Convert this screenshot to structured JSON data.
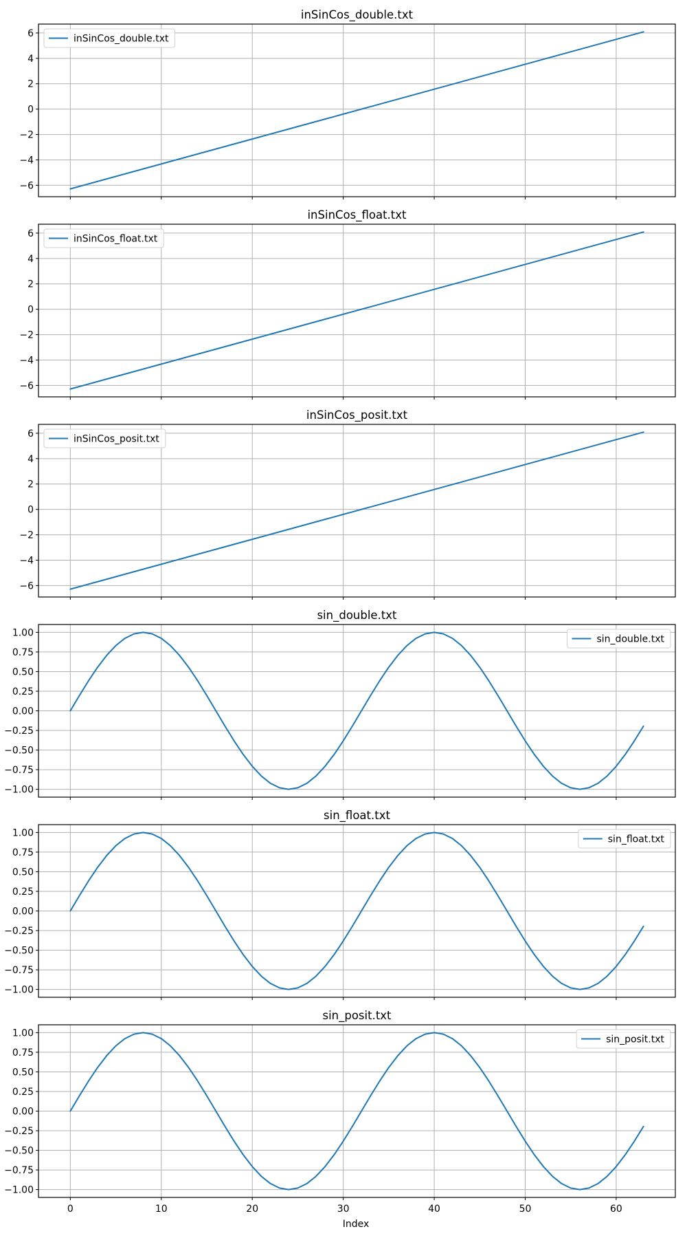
{
  "figure": {
    "xlabel": "Index",
    "line_color": "#1f77b4"
  },
  "chart_data": [
    {
      "type": "line",
      "title": "inSinCos_double.txt",
      "xlabel": "",
      "ylabel": "",
      "xlim": [
        -3.5,
        66.5
      ],
      "ylim": [
        -6.9,
        6.7
      ],
      "yticks": [
        -6,
        -4,
        -2,
        0,
        2,
        4,
        6
      ],
      "ytick_labels": [
        "−6",
        "−4",
        "−2",
        "0",
        "2",
        "4",
        "6"
      ],
      "xticks": [
        0,
        10,
        20,
        30,
        40,
        50,
        60
      ],
      "xtick_labels": [],
      "grid": true,
      "legend_loc": "upper left",
      "series": [
        {
          "name": "inSinCos_double.txt",
          "kind": "linear",
          "n": 64,
          "start": -6.2832,
          "end": 6.0868
        }
      ]
    },
    {
      "type": "line",
      "title": "inSinCos_float.txt",
      "xlabel": "",
      "ylabel": "",
      "xlim": [
        -3.5,
        66.5
      ],
      "ylim": [
        -6.9,
        6.7
      ],
      "yticks": [
        -6,
        -4,
        -2,
        0,
        2,
        4,
        6
      ],
      "ytick_labels": [
        "−6",
        "−4",
        "−2",
        "0",
        "2",
        "4",
        "6"
      ],
      "xticks": [
        0,
        10,
        20,
        30,
        40,
        50,
        60
      ],
      "xtick_labels": [],
      "grid": true,
      "legend_loc": "upper left",
      "series": [
        {
          "name": "inSinCos_float.txt",
          "kind": "linear",
          "n": 64,
          "start": -6.2832,
          "end": 6.0868
        }
      ]
    },
    {
      "type": "line",
      "title": "inSinCos_posit.txt",
      "xlabel": "",
      "ylabel": "",
      "xlim": [
        -3.5,
        66.5
      ],
      "ylim": [
        -6.9,
        6.7
      ],
      "yticks": [
        -6,
        -4,
        -2,
        0,
        2,
        4,
        6
      ],
      "ytick_labels": [
        "−6",
        "−4",
        "−2",
        "0",
        "2",
        "4",
        "6"
      ],
      "xticks": [
        0,
        10,
        20,
        30,
        40,
        50,
        60
      ],
      "xtick_labels": [],
      "grid": true,
      "legend_loc": "upper left",
      "series": [
        {
          "name": "inSinCos_posit.txt",
          "kind": "linear",
          "n": 64,
          "start": -6.2832,
          "end": 6.0868
        }
      ]
    },
    {
      "type": "line",
      "title": "sin_double.txt",
      "xlabel": "",
      "ylabel": "",
      "xlim": [
        -3.5,
        66.5
      ],
      "ylim": [
        -1.1,
        1.1
      ],
      "yticks": [
        -1.0,
        -0.75,
        -0.5,
        -0.25,
        0.0,
        0.25,
        0.5,
        0.75,
        1.0
      ],
      "ytick_labels": [
        "−1.00",
        "−0.75",
        "−0.50",
        "−0.25",
        "0.00",
        "0.25",
        "0.50",
        "0.75",
        "1.00"
      ],
      "xticks": [
        0,
        10,
        20,
        30,
        40,
        50,
        60
      ],
      "xtick_labels": [],
      "grid": true,
      "legend_loc": "upper right",
      "series": [
        {
          "name": "sin_double.txt",
          "kind": "sine",
          "n": 64,
          "period": 32
        }
      ]
    },
    {
      "type": "line",
      "title": "sin_float.txt",
      "xlabel": "",
      "ylabel": "",
      "xlim": [
        -3.5,
        66.5
      ],
      "ylim": [
        -1.1,
        1.1
      ],
      "yticks": [
        -1.0,
        -0.75,
        -0.5,
        -0.25,
        0.0,
        0.25,
        0.5,
        0.75,
        1.0
      ],
      "ytick_labels": [
        "−1.00",
        "−0.75",
        "−0.50",
        "−0.25",
        "0.00",
        "0.25",
        "0.50",
        "0.75",
        "1.00"
      ],
      "xticks": [
        0,
        10,
        20,
        30,
        40,
        50,
        60
      ],
      "xtick_labels": [],
      "grid": true,
      "legend_loc": "upper right",
      "series": [
        {
          "name": "sin_float.txt",
          "kind": "sine",
          "n": 64,
          "period": 32
        }
      ]
    },
    {
      "type": "line",
      "title": "sin_posit.txt",
      "xlabel": "Index",
      "ylabel": "",
      "xlim": [
        -3.5,
        66.5
      ],
      "ylim": [
        -1.1,
        1.1
      ],
      "yticks": [
        -1.0,
        -0.75,
        -0.5,
        -0.25,
        0.0,
        0.25,
        0.5,
        0.75,
        1.0
      ],
      "ytick_labels": [
        "−1.00",
        "−0.75",
        "−0.50",
        "−0.25",
        "0.00",
        "0.25",
        "0.50",
        "0.75",
        "1.00"
      ],
      "xticks": [
        0,
        10,
        20,
        30,
        40,
        50,
        60
      ],
      "xtick_labels": [
        "0",
        "10",
        "20",
        "30",
        "40",
        "50",
        "60"
      ],
      "grid": true,
      "legend_loc": "upper right",
      "series": [
        {
          "name": "sin_posit.txt",
          "kind": "sine",
          "n": 64,
          "period": 32
        }
      ]
    }
  ]
}
